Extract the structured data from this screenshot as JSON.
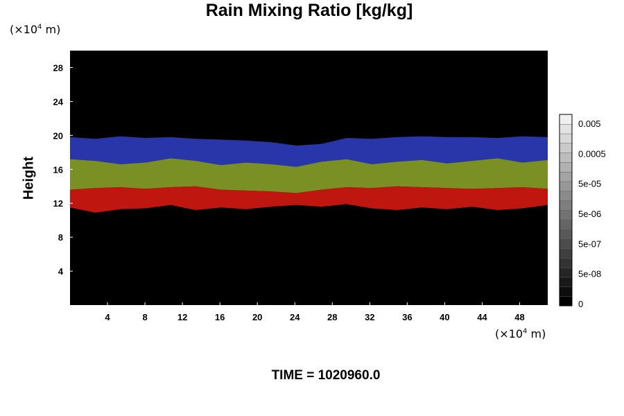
{
  "header": {
    "title": "Rain Mixing Ratio [kg/kg]"
  },
  "axes": {
    "y_unit_prefix": "(×10",
    "y_unit_exp": "4",
    "y_unit_suffix": " m)",
    "x_unit_prefix": "(×10",
    "x_unit_exp": "4",
    "x_unit_suffix": " m)",
    "ylabel": "Height"
  },
  "footer": {
    "time_label": "TIME = 1020960.0"
  },
  "colors": {
    "background": "#000000",
    "upper_band": "#2f3fc8",
    "middle_band": "#8fa82a",
    "lower_band": "#e01a12"
  },
  "chart_data": {
    "type": "heatmap",
    "title": "Rain Mixing Ratio [kg/kg]",
    "xlabel": "",
    "ylabel": "Height",
    "xlim": [
      0,
      51
    ],
    "ylim": [
      0,
      30
    ],
    "x_ticks": [
      4,
      8,
      12,
      16,
      20,
      24,
      28,
      32,
      36,
      40,
      44,
      48
    ],
    "y_ticks": [
      4,
      8,
      12,
      16,
      20,
      24,
      28
    ],
    "bands": [
      {
        "name": "upper",
        "color": "#2f3fc8",
        "base": [
          17.2,
          17.0,
          16.6,
          16.8,
          17.3,
          17.0,
          16.5,
          16.8,
          16.6,
          16.3,
          16.9,
          17.2,
          16.6,
          16.9,
          17.1,
          16.7,
          17.0,
          17.3,
          16.8,
          17.1
        ],
        "top": [
          19.8,
          19.6,
          19.9,
          19.7,
          19.8,
          19.6,
          19.5,
          19.4,
          19.2,
          18.8,
          19.0,
          19.7,
          19.6,
          19.8,
          19.9,
          19.8,
          19.8,
          19.7,
          19.9,
          19.8
        ]
      },
      {
        "name": "middle",
        "color": "#8fa82a",
        "base": [
          13.6,
          13.8,
          13.9,
          13.7,
          13.9,
          14.0,
          13.6,
          13.5,
          13.4,
          13.2,
          13.6,
          13.9,
          13.8,
          14.0,
          13.9,
          13.8,
          13.7,
          13.8,
          13.9,
          13.7
        ],
        "top": [
          17.2,
          17.0,
          16.6,
          16.8,
          17.3,
          17.0,
          16.5,
          16.8,
          16.6,
          16.3,
          16.9,
          17.2,
          16.6,
          16.9,
          17.1,
          16.7,
          17.0,
          17.3,
          16.8,
          17.1
        ]
      },
      {
        "name": "lower",
        "color": "#e01a12",
        "base": [
          11.5,
          10.9,
          11.3,
          11.4,
          11.8,
          11.2,
          11.5,
          11.3,
          11.6,
          11.8,
          11.6,
          11.9,
          11.4,
          11.2,
          11.5,
          11.3,
          11.6,
          11.2,
          11.4,
          11.8
        ],
        "top": [
          13.6,
          13.8,
          13.9,
          13.7,
          13.9,
          14.0,
          13.6,
          13.5,
          13.4,
          13.2,
          13.6,
          13.9,
          13.8,
          14.0,
          13.9,
          13.8,
          13.7,
          13.8,
          13.9,
          13.7
        ]
      }
    ],
    "colorbar": {
      "labels": [
        "0.005",
        "0.0005",
        "5e-05",
        "5e-06",
        "5e-07",
        "5e-08",
        "0"
      ],
      "levels": 20,
      "color_min": "#000000",
      "color_max": "#f0f0f0"
    }
  }
}
